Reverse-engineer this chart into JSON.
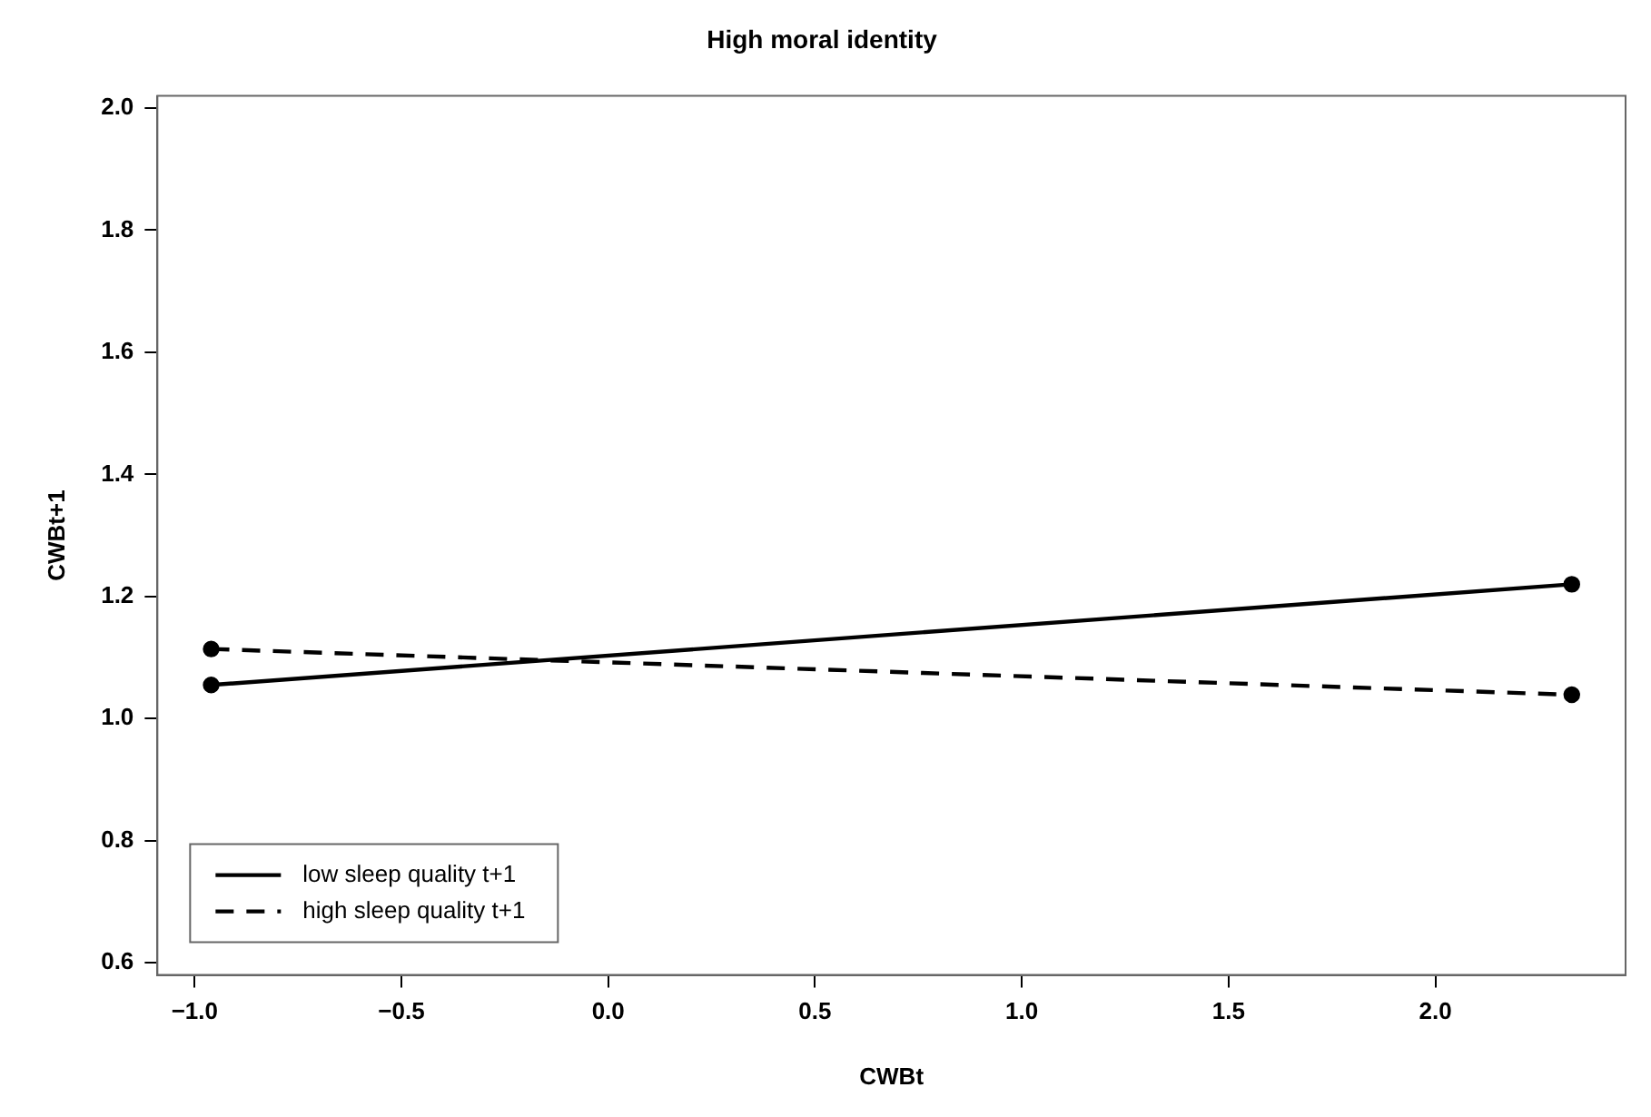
{
  "chart_data": {
    "type": "line",
    "title": "High moral identity",
    "xlabel": "CWBt",
    "ylabel": "CWBt+1",
    "x": [
      -0.96,
      2.33
    ],
    "series": [
      {
        "name": "low sleep quality t+1",
        "color": "#000000",
        "values": [
          1.055,
          1.22
        ],
        "line_style": "solid"
      },
      {
        "name": "high sleep quality t+1",
        "color": "#000000",
        "values": [
          1.114,
          1.039
        ],
        "line_style": "dashed"
      }
    ],
    "xlim": [
      -1.09,
      2.46
    ],
    "xticks": [
      {
        "value": -1.0,
        "label": "−1.0"
      },
      {
        "value": -0.5,
        "label": "−0.5"
      },
      {
        "value": 0,
        "label": "0.0"
      },
      0.5,
      {
        "value": 1,
        "label": "1.0"
      },
      1.5,
      {
        "value": 2,
        "label": "2.0"
      }
    ],
    "ylim": [
      0.58,
      2.02
    ],
    "yticks": [
      0.6,
      0.8,
      {
        "value": 1,
        "label": "1.0"
      },
      1.2,
      1.4,
      1.6,
      1.8,
      {
        "value": 2,
        "label": "2.0"
      }
    ],
    "grid": false,
    "legend": "bottom left",
    "marker": "circle"
  }
}
